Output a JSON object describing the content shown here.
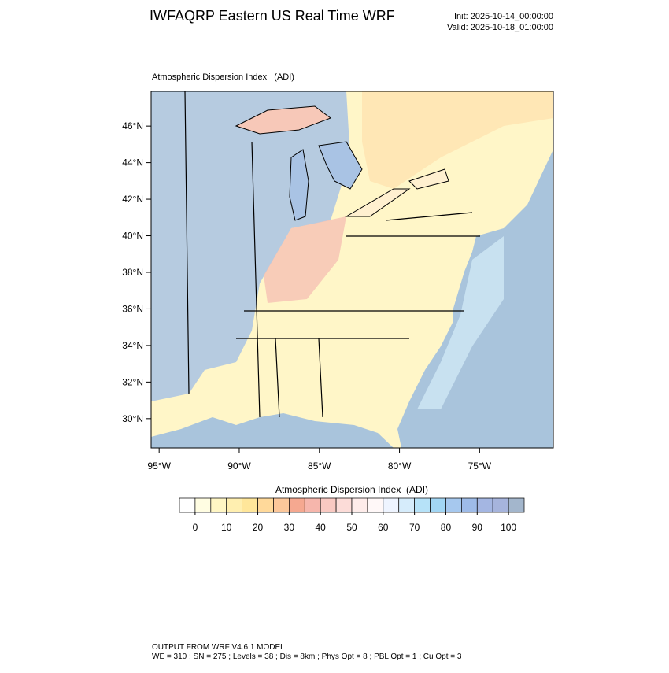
{
  "header": {
    "title": "IWFAQRP Eastern US Real Time WRF",
    "init": "Init: 2025-10-14_00:00:00",
    "valid": "Valid: 2025-10-18_01:00:00"
  },
  "map": {
    "subtitle": "Atmospheric Dispersion Index   (ADI)",
    "xlim": [
      -95.5,
      -70.4
    ],
    "ylim": [
      28.4,
      47.9
    ],
    "xticks": [
      {
        "value": -95,
        "label": "95°W"
      },
      {
        "value": -90,
        "label": "90°W"
      },
      {
        "value": -85,
        "label": "85°W"
      },
      {
        "value": -80,
        "label": "80°W"
      },
      {
        "value": -75,
        "label": "75°W"
      }
    ],
    "yticks": [
      {
        "value": 30,
        "label": "30°N"
      },
      {
        "value": 32,
        "label": "32°N"
      },
      {
        "value": 34,
        "label": "34°N"
      },
      {
        "value": 36,
        "label": "36°N"
      },
      {
        "value": 38,
        "label": "38°N"
      },
      {
        "value": 40,
        "label": "40°N"
      },
      {
        "value": 42,
        "label": "42°N"
      },
      {
        "value": 44,
        "label": "44°N"
      },
      {
        "value": 46,
        "label": "46°N"
      }
    ]
  },
  "colorbar": {
    "title": "Atmospheric Dispersion Index  (ADI)",
    "ticks": [
      0,
      10,
      20,
      30,
      40,
      50,
      60,
      70,
      80,
      90,
      100
    ],
    "colors": [
      "#ffffff",
      "#fffde2",
      "#fff6c4",
      "#ffefb0",
      "#ffe69a",
      "#ffd99a",
      "#fcc79a",
      "#f5a890",
      "#f6b6ac",
      "#f9c9c2",
      "#fcdcd8",
      "#feecea",
      "#fff8f8",
      "#eef4ff",
      "#d6ecfb",
      "#b6e2f8",
      "#a2d6f4",
      "#a6c8ee",
      "#9ebbe8",
      "#a4b6e2",
      "#a6b4dc",
      "#a3b6cc"
    ]
  },
  "footer": {
    "line1": "OUTPUT FROM WRF V4.6.1 MODEL",
    "line2": "WE = 310 ; SN = 275 ; Levels = 38 ; Dis = 8km ; Phys Opt = 8 ; PBL Opt = 1 ; Cu Opt = 3"
  }
}
